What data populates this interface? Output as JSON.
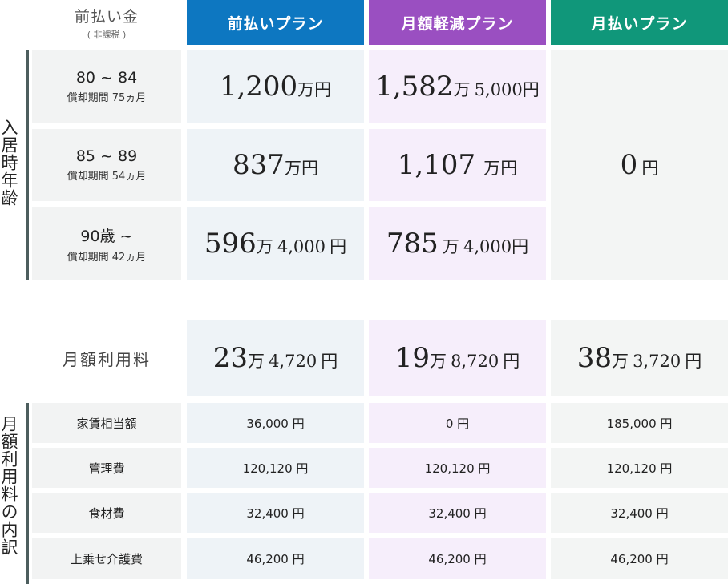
{
  "header": {
    "prepay_label": "前払い金",
    "prepay_sub": "( 非課税 )",
    "plans": [
      {
        "label": "前払いプラン",
        "color": "#0d77c1"
      },
      {
        "label": "月額軽減プラン",
        "color": "#9a4fc1"
      },
      {
        "label": "月払いプラン",
        "color": "#10977a"
      }
    ]
  },
  "side": {
    "age_label": "入居時年齢",
    "breakdown_label": "月額利用料の内訳"
  },
  "age_rows": [
    {
      "range": "80 ~ 84",
      "period": "償却期間 75ヵ月",
      "prepay": {
        "man": "1,200",
        "yen": "",
        "unit_man": "万円"
      },
      "reduced": {
        "man": "1,582",
        "yen": "5,000",
        "unit_man": "万",
        "unit_yen": "円"
      }
    },
    {
      "range": "85 ~ 89",
      "period": "償却期間 54ヵ月",
      "prepay": {
        "man": "837",
        "yen": "",
        "unit_man": "万円"
      },
      "reduced": {
        "man": "1,107",
        "yen": "",
        "unit_man": "万円"
      }
    },
    {
      "range": "90歳 ~",
      "period": "償却期間 42ヵ月",
      "prepay": {
        "man": "596",
        "yen": "4,000",
        "unit_man": "万",
        "unit_yen": "円"
      },
      "reduced": {
        "man": "785",
        "yen": "4,000",
        "unit_man": "万",
        "unit_yen": "円"
      }
    }
  ],
  "monthly_payment": {
    "amount": "0",
    "unit": "円"
  },
  "monthly_fee": {
    "label": "月額利用料",
    "values": [
      {
        "man": "23",
        "yen": "4,720",
        "unit_man": "万",
        "unit_yen": "円"
      },
      {
        "man": "19",
        "yen": "8,720",
        "unit_man": "万",
        "unit_yen": "円"
      },
      {
        "man": "38",
        "yen": "3,720",
        "unit_man": "万",
        "unit_yen": "円"
      }
    ]
  },
  "breakdown": [
    {
      "label": "家賃相当額",
      "values": [
        "36,000 円",
        "0 円",
        "185,000 円"
      ]
    },
    {
      "label": "管理費",
      "values": [
        "120,120 円",
        "120,120 円",
        "120,120 円"
      ]
    },
    {
      "label": "食材費",
      "values": [
        "32,400 円",
        "32,400 円",
        "32,400 円"
      ]
    },
    {
      "label": "上乗せ介護費",
      "values": [
        "46,200 円",
        "46,200 円",
        "46,200 円"
      ]
    }
  ]
}
